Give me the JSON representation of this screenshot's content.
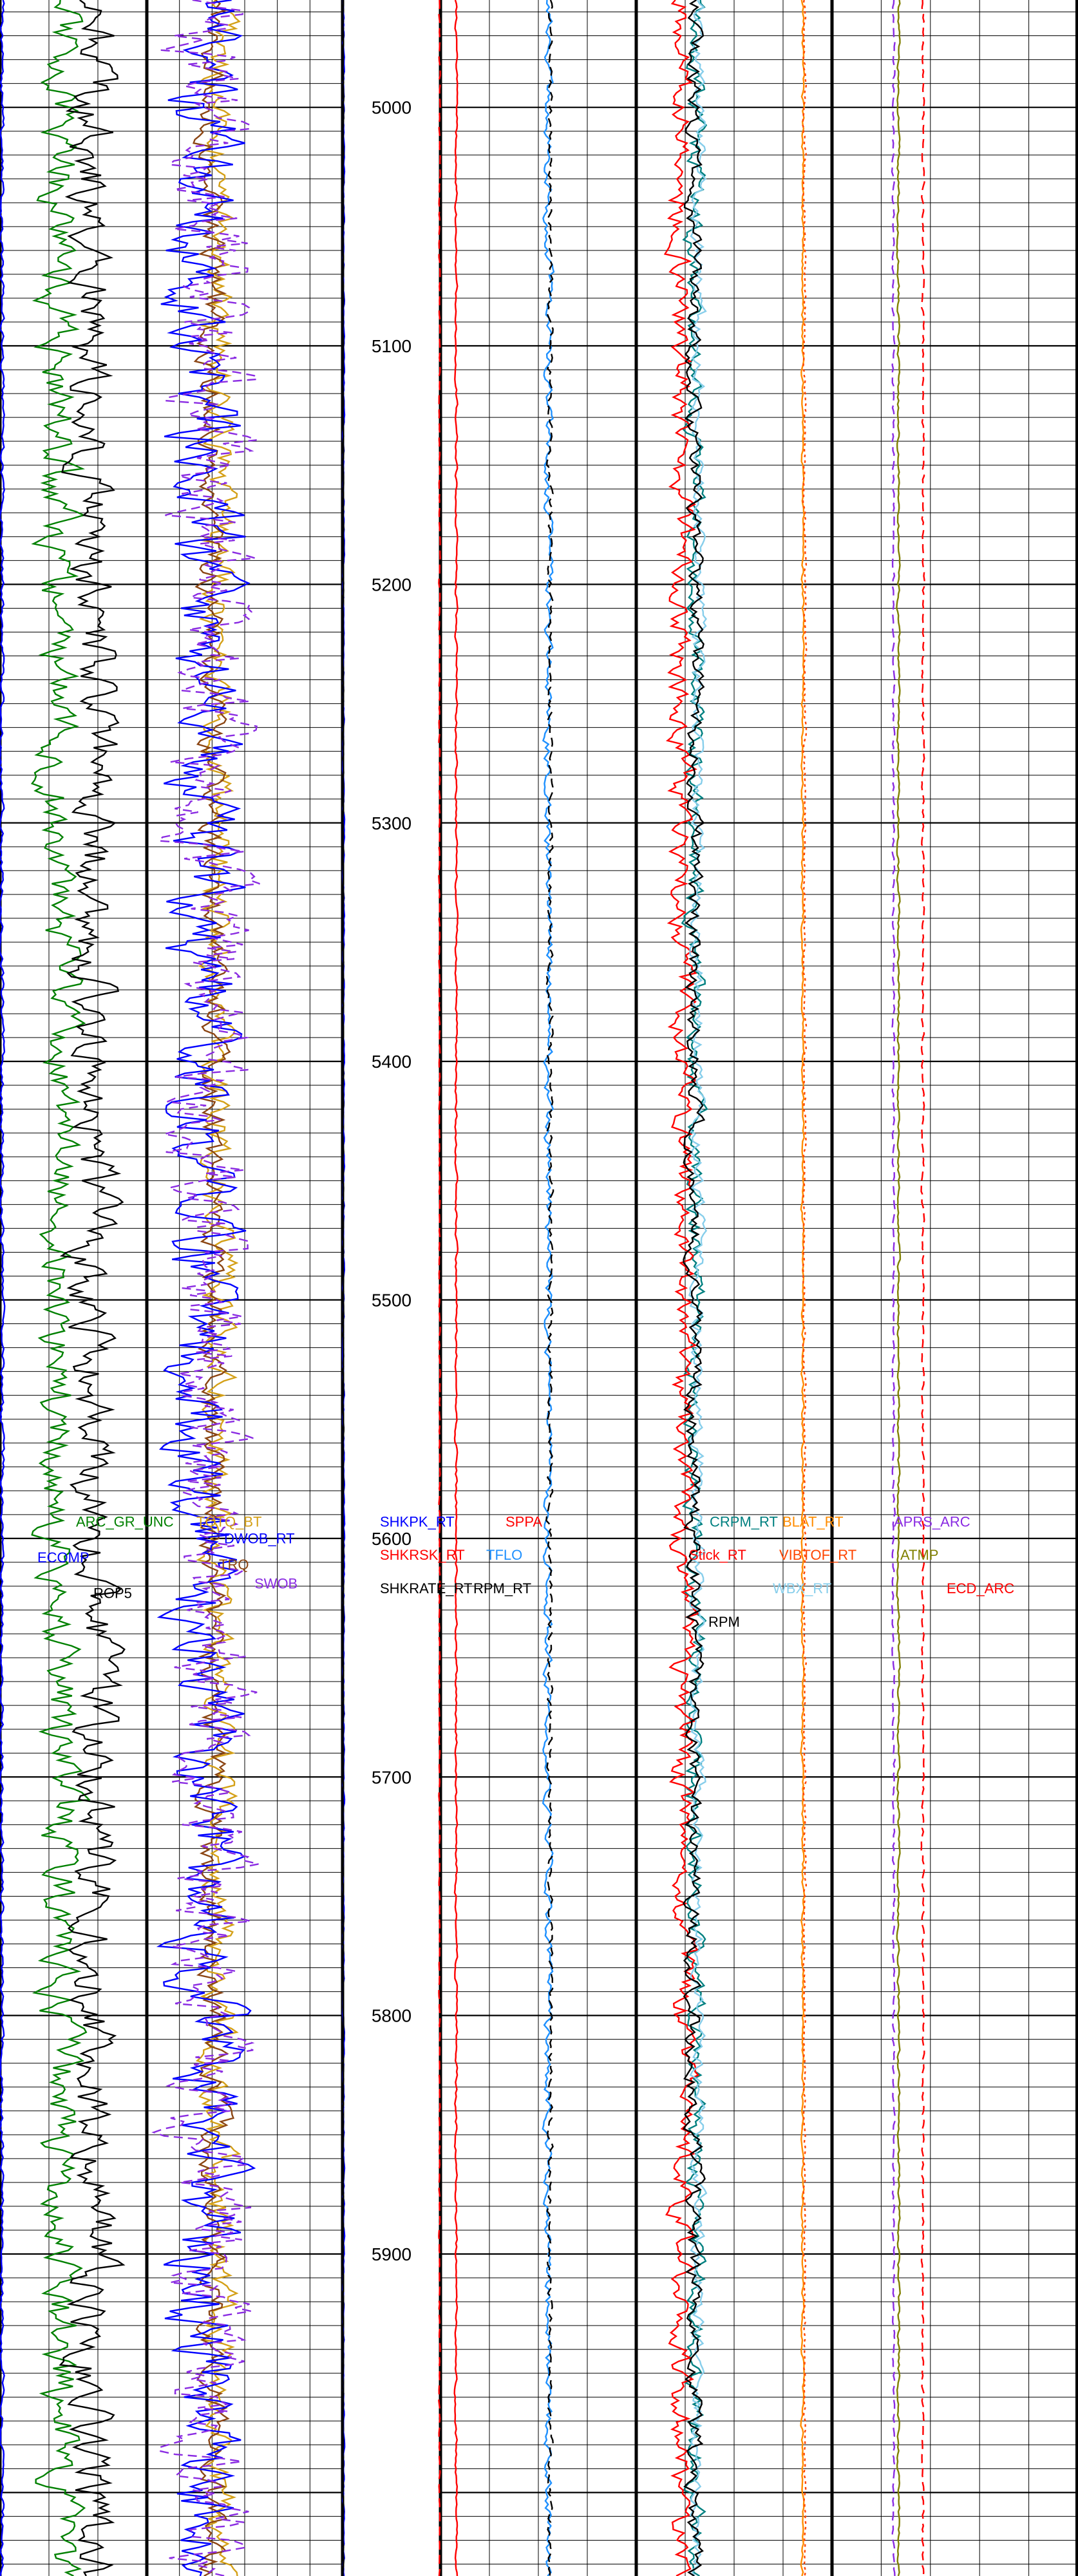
{
  "chart_data": {
    "type": "well-log",
    "depth_axis": {
      "start": 4955,
      "end": 6035,
      "major_step": 100,
      "minor_step": 10,
      "labels": [
        "5000",
        "5100",
        "5200",
        "5300",
        "5400",
        "5500",
        "5600",
        "5700",
        "5800",
        "5900"
      ]
    },
    "tracks": [
      {
        "name": "gamma-ray-track",
        "curves": [
          {
            "label": "ARC_GR_UNC",
            "color": "#008000",
            "style": "solid",
            "range": [
              0,
              150
            ],
            "base": 60,
            "amp": 20,
            "seed": 11
          },
          {
            "label": "ECOMP",
            "color": "#0000ff",
            "style": "solid",
            "range": [
              0,
              150
            ],
            "base": 2,
            "amp": 2,
            "seed": 12
          },
          {
            "label": "ROP5",
            "color": "#000000",
            "style": "solid",
            "range": [
              0,
              150
            ],
            "base": 95,
            "amp": 22,
            "seed": 13
          }
        ]
      },
      {
        "name": "drilling-dynamics-track",
        "curves": [
          {
            "label": "TQTQ_BT",
            "color": "#d4a017",
            "style": "solid",
            "range": [
              0,
              150
            ],
            "base": 55,
            "amp": 12,
            "seed": 21
          },
          {
            "label": "TRQ",
            "color": "#8b4513",
            "style": "solid",
            "range": [
              0,
              150
            ],
            "base": 50,
            "amp": 10,
            "seed": 22
          },
          {
            "label": "DWOB_RT",
            "color": "#0000ff",
            "style": "solid",
            "range": [
              0,
              150
            ],
            "base": 45,
            "amp": 28,
            "seed": 23
          },
          {
            "label": "SWOB",
            "color": "#8a2be2",
            "style": "dashed",
            "range": [
              0,
              150
            ],
            "base": 48,
            "amp": 30,
            "seed": 24
          }
        ]
      },
      {
        "name": "shock-track",
        "curves": [
          {
            "label": "SHKPK_RT",
            "color": "#0000ff",
            "style": "solid",
            "range": [
              0,
              50
            ],
            "base": 0.5,
            "amp": 0.4,
            "seed": 31
          },
          {
            "label": "SHKRSK_RT",
            "color": "#ff0000",
            "style": "dashed",
            "range": [
              0,
              50
            ],
            "base": 49.5,
            "amp": 0.3,
            "seed": 32
          },
          {
            "label": "SHKRATE_RT",
            "color": "#000000",
            "style": "solid",
            "range": [
              0,
              50
            ],
            "base": 0.3,
            "amp": 0.2,
            "seed": 33
          }
        ]
      },
      {
        "name": "flow-pressure-track",
        "curves": [
          {
            "label": "SPPA",
            "color": "#ff0000",
            "style": "solid",
            "range": [
              0,
              5000
            ],
            "base": 400,
            "amp": 30,
            "seed": 41
          },
          {
            "label": "TFLO",
            "color": "#1e90ff",
            "style": "solid",
            "range": [
              0,
              1000
            ],
            "base": 550,
            "amp": 20,
            "seed": 42
          },
          {
            "label": "RPM_RT",
            "color": "#000000",
            "style": "dashed",
            "range": [
              0,
              300
            ],
            "base": 168,
            "amp": 4,
            "seed": 43
          }
        ]
      },
      {
        "name": "rotation-track",
        "curves": [
          {
            "label": "CRPM_RT",
            "color": "#008080",
            "style": "solid",
            "range": [
              0,
              300
            ],
            "base": 90,
            "amp": 14,
            "seed": 51
          },
          {
            "label": "Stick_RT",
            "color": "#ff0000",
            "style": "solid",
            "range": [
              0,
              300
            ],
            "base": 70,
            "amp": 18,
            "seed": 52
          },
          {
            "label": "WBX_RT",
            "color": "#87ceeb",
            "style": "solid",
            "range": [
              0,
              300
            ],
            "base": 95,
            "amp": 10,
            "seed": 53
          },
          {
            "label": "RPM",
            "color": "#000000",
            "style": "solid",
            "range": [
              0,
              300
            ],
            "base": 88,
            "amp": 12,
            "seed": 54
          },
          {
            "label": "BLAT_RT",
            "color": "#ff8c00",
            "style": "solid",
            "range": [
              0,
              300
            ],
            "base": 255,
            "amp": 2,
            "seed": 55
          },
          {
            "label": "VIBTOF_RT",
            "color": "#ff4500",
            "style": "dotted",
            "range": [
              0,
              300
            ],
            "base": 258,
            "amp": 2,
            "seed": 56
          }
        ]
      },
      {
        "name": "annular-track",
        "curves": [
          {
            "label": "APRS_ARC",
            "color": "#8a2be2",
            "style": "dashed",
            "range": [
              0,
              100
            ],
            "base": 25,
            "amp": 0.5,
            "seed": 61
          },
          {
            "label": "ATMP",
            "color": "#808000",
            "style": "solid",
            "range": [
              0,
              100
            ],
            "base": 27,
            "amp": 0.5,
            "seed": 62
          },
          {
            "label": "ECD_ARC",
            "color": "#ff0000",
            "style": "dashed",
            "range": [
              0,
              100
            ],
            "base": 37,
            "amp": 0.5,
            "seed": 63
          }
        ]
      }
    ],
    "grid": true,
    "title": "",
    "xlabel": "",
    "ylabel": ""
  }
}
